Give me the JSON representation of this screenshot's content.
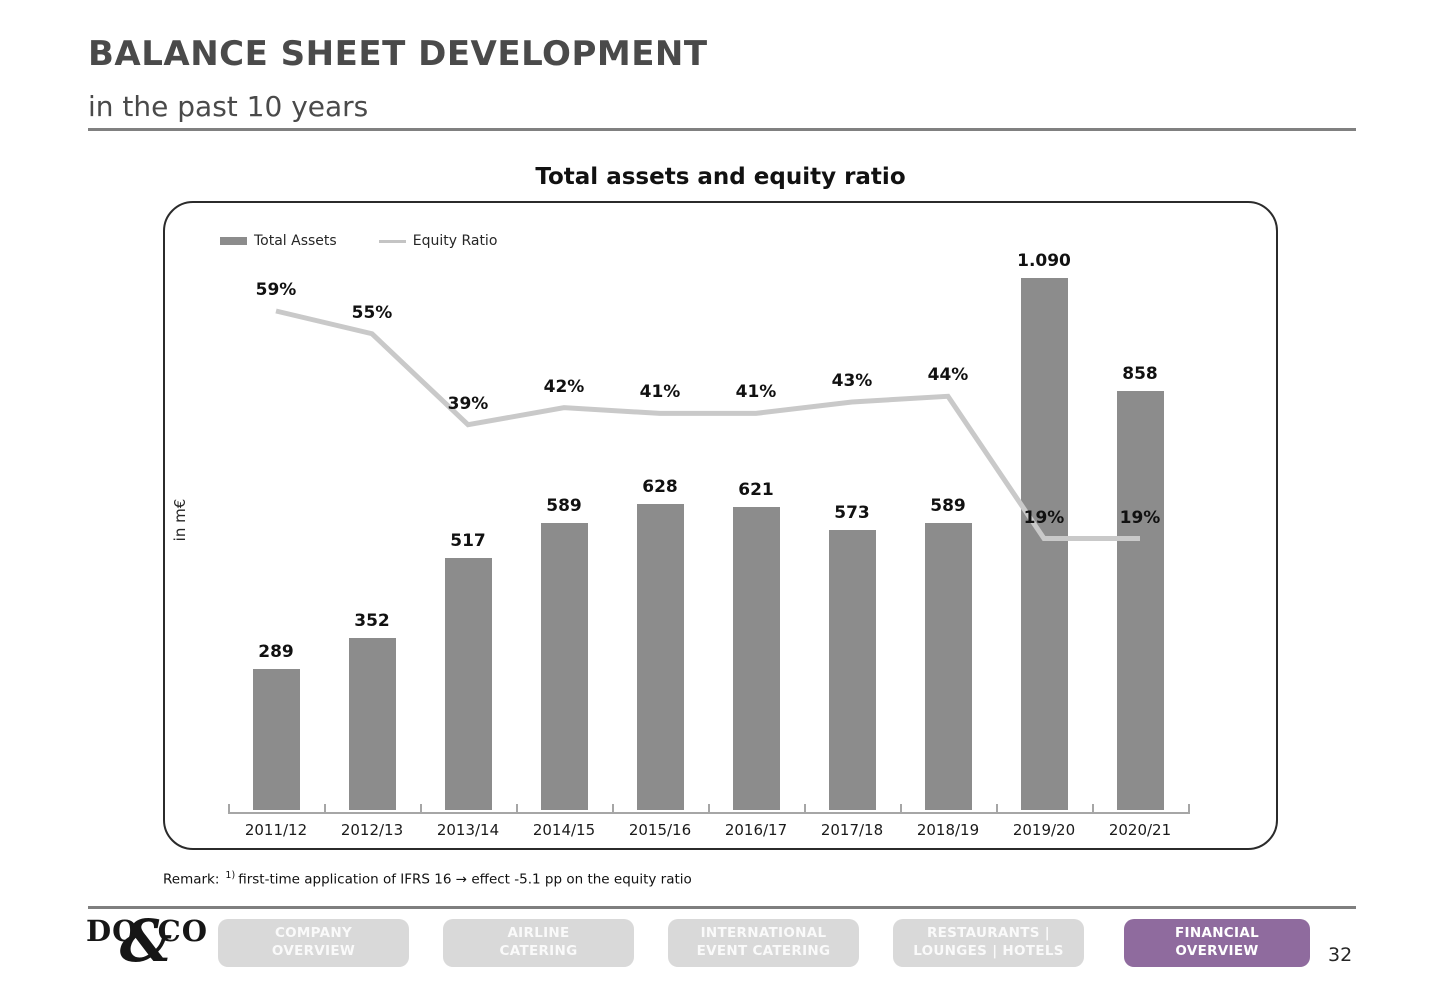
{
  "header": {
    "title": "BALANCE SHEET DEVELOPMENT",
    "subtitle": "in the past 10 years"
  },
  "chart": {
    "title": "Total assets and equity ratio",
    "y_axis_label": "in m€",
    "legend": [
      {
        "label": "Total Assets",
        "swatch": "bar-swatch"
      },
      {
        "label": "Equity Ratio",
        "swatch": "line-swatch"
      }
    ]
  },
  "chart_data": {
    "type": "bar",
    "title": "Total assets and equity ratio",
    "xlabel": "",
    "ylabel": "in m€",
    "grid": false,
    "legend_position": "top-left",
    "categories": [
      "2011/12",
      "2012/13",
      "2013/14",
      "2014/15",
      "2015/16",
      "2016/17",
      "2017/18",
      "2018/19",
      "2019/20",
      "2020/21"
    ],
    "series": [
      {
        "name": "Total Assets",
        "type": "bar",
        "unit": "m€",
        "axis": "left",
        "ylim": [
          0,
          1200
        ],
        "values": [
          289,
          352,
          517,
          589,
          628,
          621,
          573,
          589,
          1090,
          858
        ],
        "labels": [
          "289",
          "352",
          "517",
          "589",
          "628",
          "621",
          "573",
          "589",
          "1.090",
          "858"
        ]
      },
      {
        "name": "Equity Ratio",
        "type": "line",
        "unit": "%",
        "axis": "right",
        "values": [
          59,
          55,
          39,
          42,
          41,
          41,
          43,
          44,
          19,
          19
        ],
        "labels": [
          "59%",
          "55%",
          "39%",
          "42%",
          "41%",
          "41%",
          "43%",
          "44%",
          "19%",
          "19%"
        ]
      }
    ]
  },
  "remark": {
    "prefix": "Remark:",
    "superscript": "1)",
    "text": "first-time application of IFRS 16 → effect -5.1 pp on the equity ratio"
  },
  "footer": {
    "logo": {
      "left": "DO",
      "amp": "&",
      "right": "CO"
    },
    "nav": [
      {
        "id": "company-overview",
        "line1": "COMPANY",
        "line2": "OVERVIEW",
        "active": false
      },
      {
        "id": "airline-catering",
        "line1": "AIRLINE",
        "line2": "CATERING",
        "active": false
      },
      {
        "id": "international-event-catering",
        "line1": "INTERNATIONAL",
        "line2": "EVENT CATERING",
        "active": false
      },
      {
        "id": "restaurants-lounges-hotels",
        "line1": "RESTAURANTS |",
        "line2": "LOUNGES | HOTELS",
        "active": false
      },
      {
        "id": "financial-overview",
        "line1": "FINANCIAL",
        "line2": "OVERVIEW",
        "active": true
      }
    ],
    "page_number": "32"
  },
  "colors": {
    "bar_gray": "#8c8c8c",
    "line_gray": "#c9c9c9",
    "accent_purple": "#8f6b9e",
    "button_gray": "#d9d9d9",
    "heading_gray": "#4a4a4a",
    "rule_gray": "#808080"
  }
}
